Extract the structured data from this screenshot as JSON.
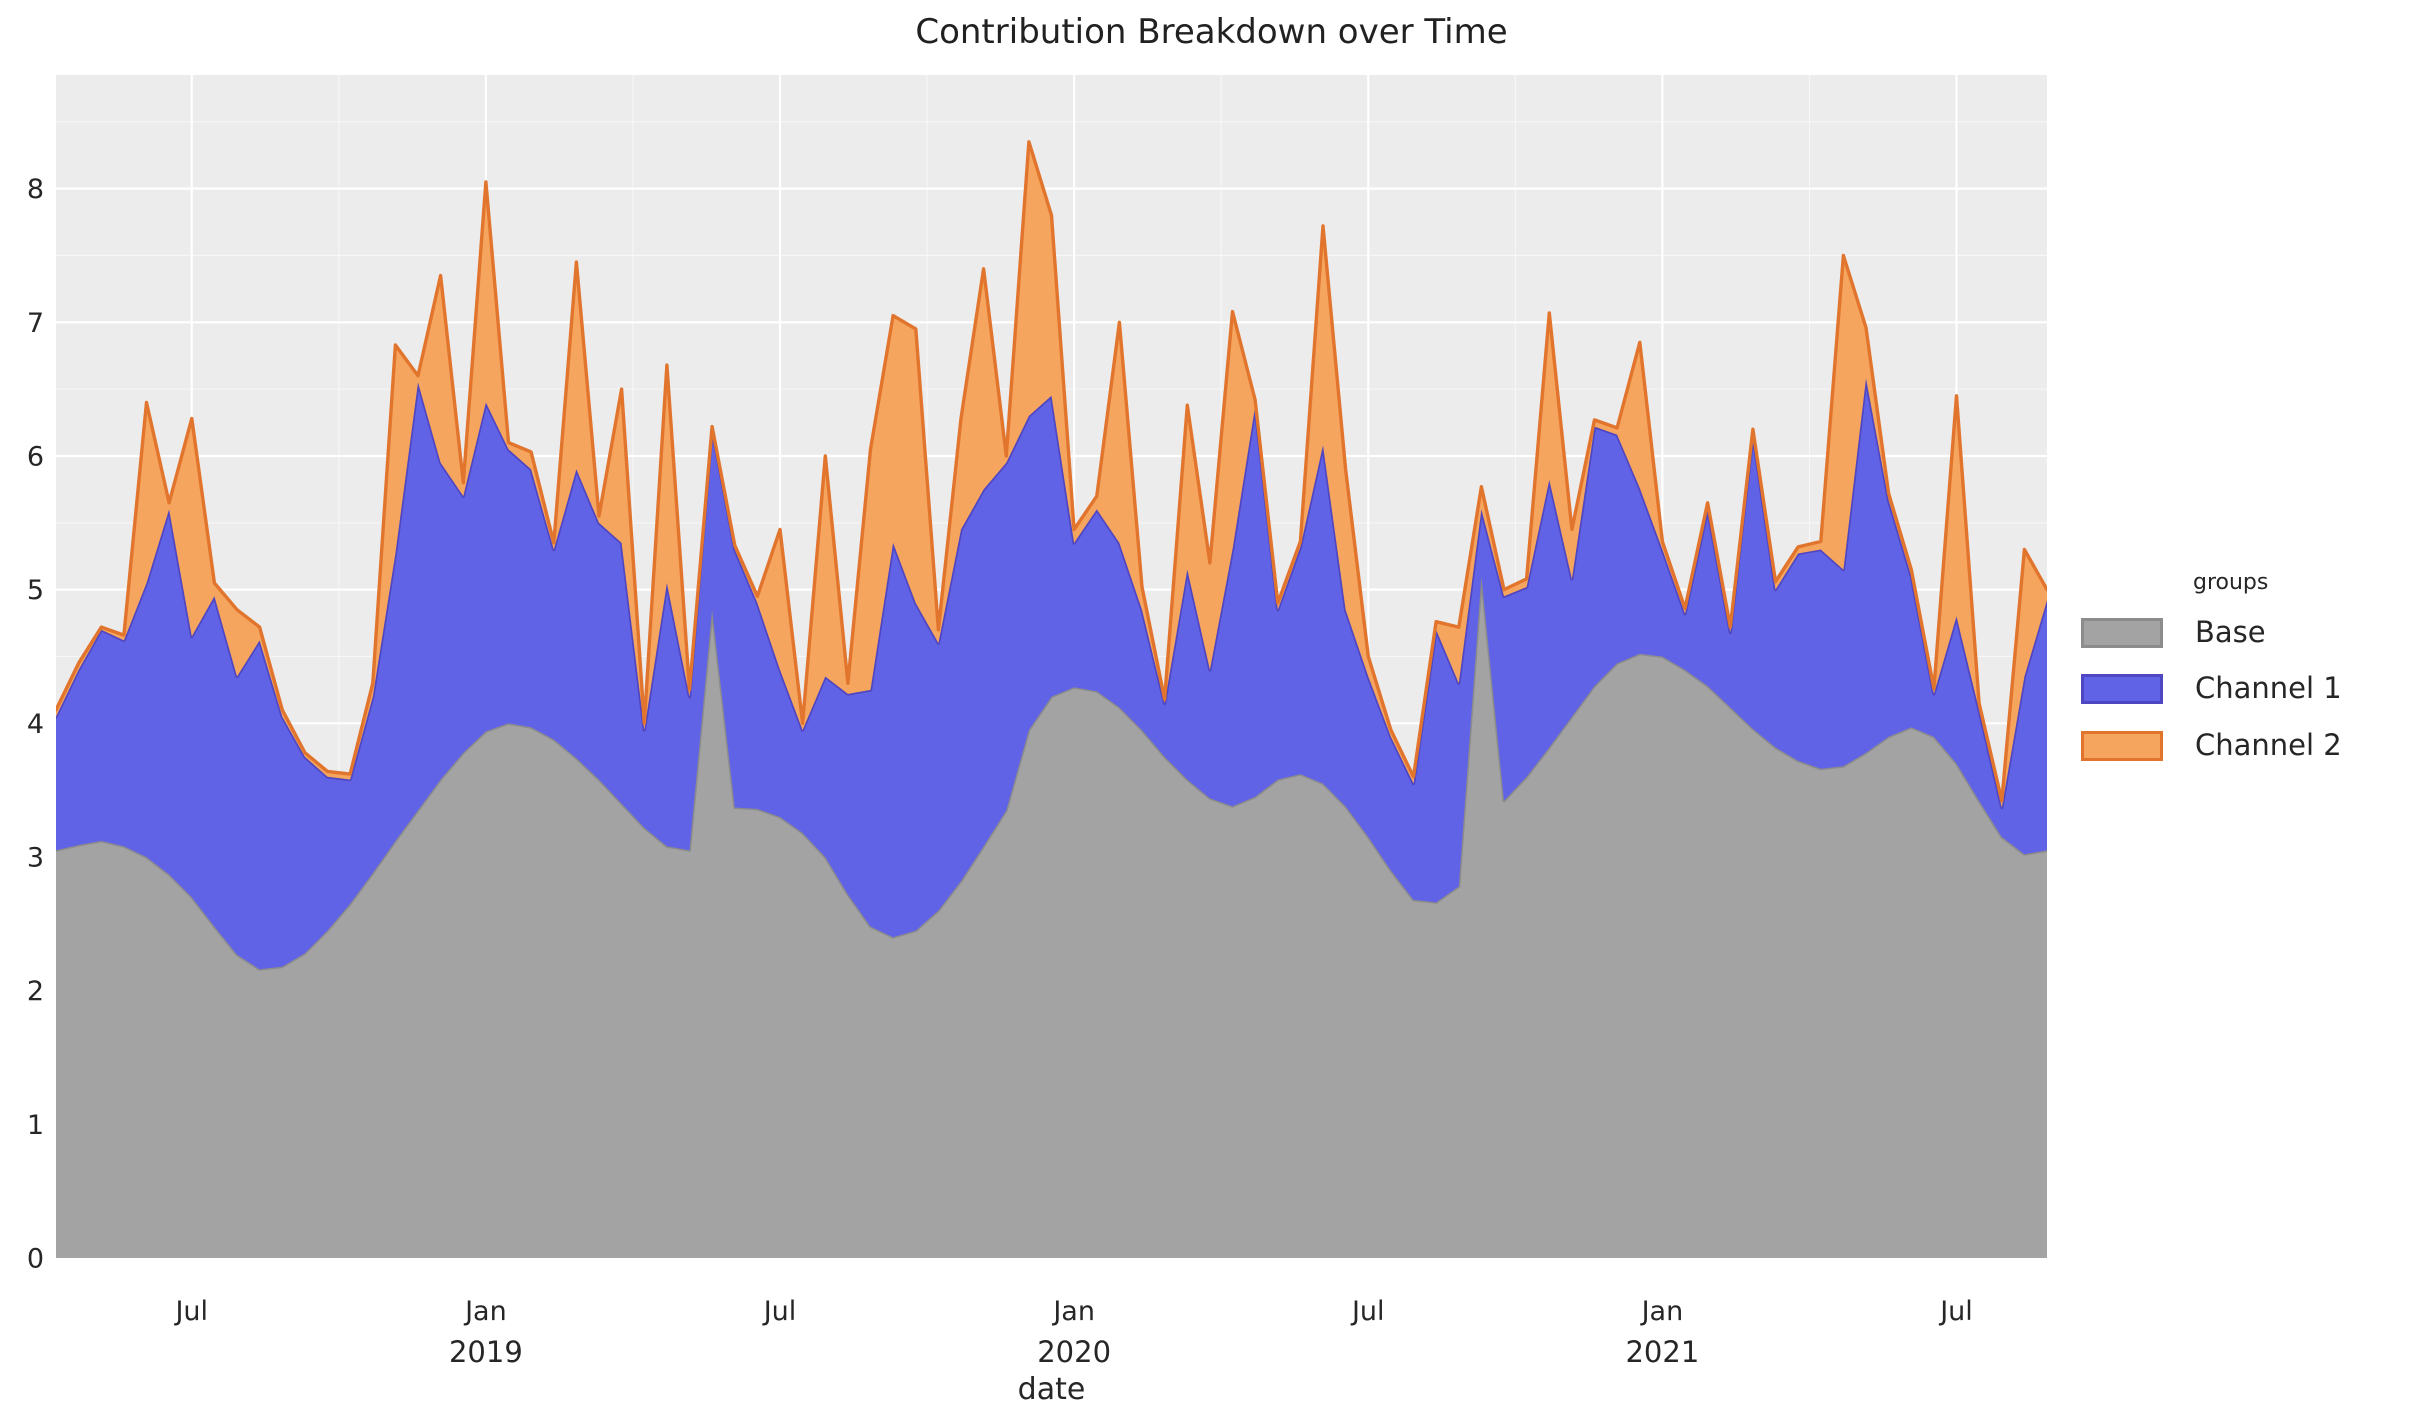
{
  "title": "Contribution Breakdown over Time",
  "axes": {
    "x_label": "date",
    "y_tick_labels": [
      "0",
      "1",
      "2",
      "3",
      "4",
      "5",
      "6",
      "7",
      "8"
    ]
  },
  "legend": {
    "title": "groups",
    "items": [
      {
        "label": "Base"
      },
      {
        "label": "Channel 1"
      },
      {
        "label": "Channel 2"
      }
    ]
  },
  "colors": {
    "plot_background": "#ececec",
    "grid_major": "#ffffff",
    "grid_minor": "#f7f7f7",
    "text": "#262626",
    "title_text": "#212121"
  },
  "chart_data": {
    "type": "area",
    "stacked": true,
    "title": "Contribution Breakdown over Time",
    "xlabel": "date",
    "ylabel": "",
    "legend_title": "groups",
    "legend_position": "right",
    "grid": "major+minor",
    "ylim": [
      0,
      8.85
    ],
    "y_ticks": [
      0,
      1,
      2,
      3,
      4,
      5,
      6,
      7,
      8
    ],
    "start_date": "2018-04-22",
    "interval_days": 14,
    "n_points": 89,
    "total_weeks": 176,
    "x_ticks": [
      {
        "label": "Jul",
        "year": "",
        "week": 12
      },
      {
        "label": "Jan",
        "year": "2019",
        "week": 38
      },
      {
        "label": "Jul",
        "year": "",
        "week": 64
      },
      {
        "label": "Jan",
        "year": "2020",
        "week": 90
      },
      {
        "label": "Jul",
        "year": "",
        "week": 116
      },
      {
        "label": "Jan",
        "year": "2021",
        "week": 142
      },
      {
        "label": "Jul",
        "year": "",
        "week": 168
      }
    ],
    "minor_x_weeks": [
      25,
      51,
      77,
      103,
      129,
      155
    ],
    "minor_y": [
      0.5,
      1.5,
      2.5,
      3.5,
      4.5,
      5.5,
      6.5,
      7.5,
      8.5
    ],
    "series": [
      {
        "name": "Base",
        "fill": "#a3a3a3",
        "stroke": "#8c8c8c",
        "values": [
          3.05,
          3.09,
          3.12,
          3.08,
          3.0,
          2.87,
          2.7,
          2.48,
          2.27,
          2.16,
          2.18,
          2.28,
          2.45,
          2.65,
          2.88,
          3.12,
          3.35,
          3.58,
          3.78,
          3.94,
          4.0,
          3.97,
          3.88,
          3.74,
          3.58,
          3.4,
          3.22,
          3.08,
          3.05,
          4.85,
          3.37,
          3.36,
          3.3,
          3.18,
          3.0,
          2.72,
          2.48,
          2.4,
          2.45,
          2.6,
          2.82,
          3.08,
          3.35,
          3.95,
          4.2,
          4.27,
          4.24,
          4.12,
          3.95,
          3.75,
          3.58,
          3.44,
          3.38,
          3.45,
          3.58,
          3.62,
          3.55,
          3.38,
          3.15,
          2.9,
          2.68,
          2.66,
          2.78,
          5.1,
          3.42,
          3.6,
          3.82,
          4.05,
          4.28,
          4.45,
          4.52,
          4.5,
          4.4,
          4.28,
          4.12,
          3.96,
          3.82,
          3.72,
          3.66,
          3.68,
          3.78,
          3.9,
          3.97,
          3.9,
          3.7,
          3.42,
          3.15,
          3.02,
          3.05
        ]
      },
      {
        "name": "Channel 1",
        "fill": "#6163e6",
        "stroke": "#4f46c2",
        "values": [
          1.0,
          1.31,
          1.58,
          1.54,
          2.05,
          2.73,
          1.95,
          2.47,
          2.08,
          2.46,
          1.87,
          1.47,
          1.15,
          0.93,
          1.32,
          2.15,
          3.2,
          2.37,
          1.92,
          2.46,
          2.05,
          1.93,
          1.42,
          2.16,
          1.92,
          1.95,
          0.73,
          1.97,
          1.15,
          1.35,
          1.93,
          1.54,
          1.1,
          0.77,
          1.35,
          1.5,
          1.77,
          2.95,
          2.45,
          2.0,
          2.63,
          2.67,
          2.6,
          2.35,
          2.25,
          1.08,
          1.36,
          1.23,
          0.9,
          0.4,
          1.57,
          0.96,
          1.92,
          2.92,
          1.27,
          1.7,
          2.53,
          1.47,
          1.2,
          1.0,
          0.87,
          2.04,
          1.52,
          0.5,
          1.53,
          1.42,
          2.0,
          1.03,
          1.94,
          1.71,
          1.24,
          0.8,
          0.42,
          1.32,
          0.56,
          2.2,
          1.18,
          1.55,
          1.64,
          1.47,
          2.8,
          1.77,
          1.13,
          0.32,
          1.1,
          0.68,
          0.22,
          1.33,
          1.87
        ]
      },
      {
        "name": "Channel 2",
        "fill": "#f5a55e",
        "stroke": "#e2752d",
        "values": [
          0.05,
          0.05,
          0.02,
          0.04,
          1.35,
          0.05,
          1.63,
          0.1,
          0.5,
          0.1,
          0.05,
          0.03,
          0.04,
          0.04,
          0.1,
          1.56,
          0.05,
          1.4,
          0.1,
          1.65,
          0.05,
          0.13,
          0.05,
          1.55,
          0.05,
          1.15,
          0.05,
          1.63,
          0.05,
          0.02,
          0.03,
          0.05,
          1.05,
          0.05,
          1.65,
          0.08,
          1.8,
          1.7,
          2.05,
          0.1,
          0.83,
          1.65,
          0.05,
          2.05,
          1.35,
          0.1,
          0.1,
          1.65,
          0.17,
          0.03,
          1.23,
          0.8,
          1.78,
          0.05,
          0.05,
          0.04,
          1.64,
          1.05,
          0.15,
          0.05,
          0.05,
          0.06,
          0.42,
          0.17,
          0.05,
          0.06,
          1.25,
          0.37,
          0.05,
          0.05,
          1.09,
          0.06,
          0.04,
          0.05,
          0.04,
          0.04,
          0.06,
          0.05,
          0.06,
          2.35,
          0.38,
          0.05,
          0.05,
          0.04,
          1.65,
          0.05,
          0.05,
          0.95,
          0.08
        ]
      }
    ]
  }
}
